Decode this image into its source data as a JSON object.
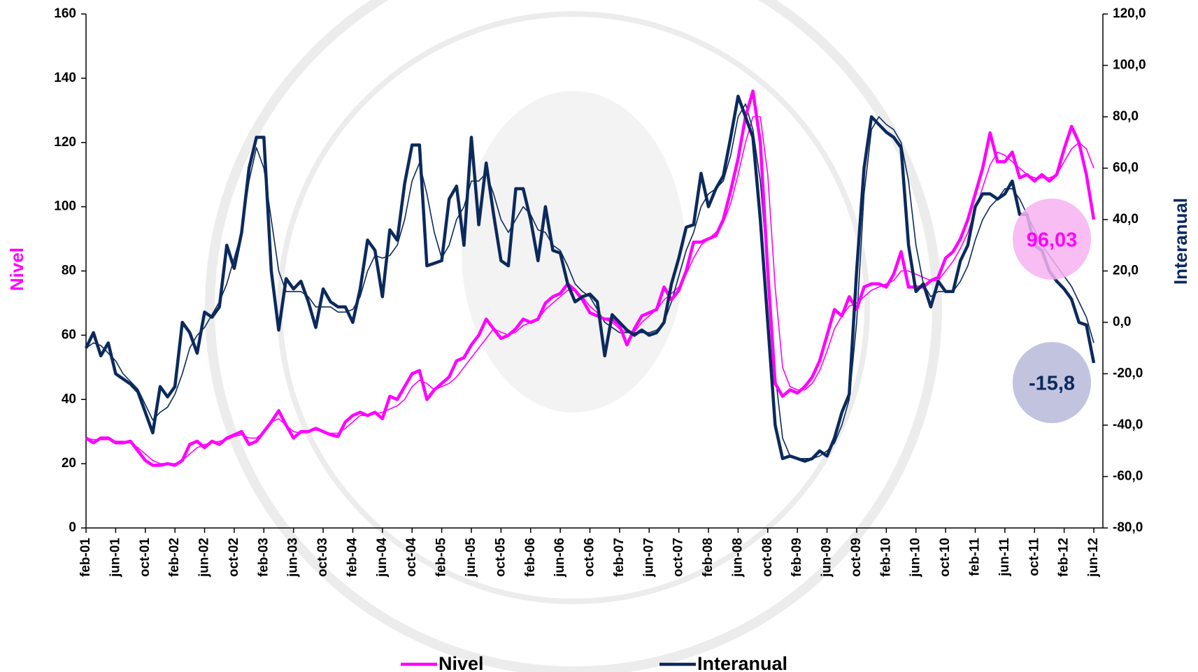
{
  "chart_data": {
    "type": "line",
    "categories": [
      "feb-01",
      null,
      null,
      null,
      "jun-01",
      null,
      null,
      null,
      "oct-01",
      null,
      null,
      null,
      "feb-02",
      null,
      null,
      null,
      "jun-02",
      null,
      null,
      null,
      "oct-02",
      null,
      null,
      null,
      "feb-03",
      null,
      null,
      null,
      "jun-03",
      null,
      null,
      null,
      "oct-03",
      null,
      null,
      null,
      "feb-04",
      null,
      null,
      null,
      "jun-04",
      null,
      null,
      null,
      "oct-04",
      null,
      null,
      null,
      "feb-05",
      null,
      null,
      null,
      "jun-05",
      null,
      null,
      null,
      "oct-05",
      null,
      null,
      null,
      "feb-06",
      null,
      null,
      null,
      "jun-06",
      null,
      null,
      null,
      "oct-06",
      null,
      null,
      null,
      "feb-07",
      null,
      null,
      null,
      "jun-07",
      null,
      null,
      null,
      "oct-07",
      null,
      null,
      null,
      "feb-08",
      null,
      null,
      null,
      "jun-08",
      null,
      null,
      null,
      "oct-08",
      null,
      null,
      null,
      "feb-09",
      null,
      null,
      null,
      "jun-09",
      null,
      null,
      null,
      "oct-09",
      null,
      null,
      null,
      "feb-10",
      null,
      null,
      null,
      "jun-10",
      null,
      null,
      null,
      "oct-10",
      null,
      null,
      null,
      "feb-11",
      null,
      null,
      null,
      "jun-11",
      null,
      null,
      null,
      "oct-11",
      null,
      null,
      null,
      "feb-12",
      null,
      null,
      null,
      "jun-12"
    ],
    "y_label": "Nivel",
    "y2_label": "Interanual",
    "y_label_color": "#ff00ff",
    "y2_label_color": "#0b2a5c",
    "ylim": [
      0,
      160
    ],
    "yticks": [
      0,
      20,
      40,
      60,
      80,
      100,
      120,
      140,
      160
    ],
    "y2lim": [
      -80,
      120
    ],
    "y2ticks": [
      {
        "value": -80,
        "label": "-80,0"
      },
      {
        "value": -60,
        "label": "-60,0"
      },
      {
        "value": -40,
        "label": "-40,0"
      },
      {
        "value": -20,
        "label": "-20,0"
      },
      {
        "value": 0,
        "label": "0,0"
      },
      {
        "value": 20,
        "label": "20,0"
      },
      {
        "value": 40,
        "label": "40,0"
      },
      {
        "value": 60,
        "label": "60,0"
      },
      {
        "value": 80,
        "label": "80,0"
      },
      {
        "value": 100,
        "label": "100,0"
      },
      {
        "value": 120,
        "label": "120,0"
      }
    ],
    "grid": false,
    "legend": "bottom",
    "series": [
      {
        "name": "Nivel",
        "color": "#ff00ff",
        "badge_color": "#f7b3f2",
        "values": [
          28,
          26.5,
          28,
          28,
          26.5,
          26.5,
          27,
          24,
          21,
          19.5,
          19.5,
          20,
          19.5,
          21,
          26,
          27,
          25,
          27,
          26,
          28,
          29,
          30,
          26,
          27,
          30,
          33,
          36.5,
          32,
          28,
          30,
          30,
          31,
          30,
          29,
          28.5,
          33,
          35,
          36,
          35,
          36,
          34,
          41,
          40,
          44,
          48,
          49,
          40,
          43,
          45,
          47,
          52,
          53,
          57,
          60,
          65,
          62,
          59,
          60,
          62,
          65,
          64,
          65,
          70,
          72,
          73,
          76,
          74,
          71,
          67,
          66,
          65,
          65,
          63,
          57,
          62,
          66,
          67,
          68,
          75,
          71,
          74,
          80,
          89,
          89,
          90,
          91,
          96,
          105,
          115,
          128,
          136,
          120,
          80,
          45,
          41,
          43,
          42,
          44,
          47,
          52,
          60,
          68,
          66,
          72,
          68,
          75,
          76,
          76,
          75,
          79,
          86,
          75,
          75,
          75,
          77,
          78,
          84,
          86,
          90,
          96,
          104,
          112,
          123,
          114,
          114,
          117,
          109,
          110,
          108,
          110,
          108,
          110,
          118,
          125,
          120,
          110,
          96.03
        ],
        "value_labels": [
          null,
          null,
          null,
          null,
          null,
          null,
          null,
          null,
          null,
          null,
          null,
          null,
          null,
          null,
          null,
          null,
          null,
          null,
          null,
          null,
          null,
          null,
          null,
          null,
          null,
          null,
          null,
          null,
          null,
          null,
          null,
          null,
          null,
          null,
          null,
          null,
          null,
          null,
          null,
          null,
          null,
          null,
          null,
          null,
          null,
          null,
          null,
          null,
          null,
          null,
          null,
          null,
          null,
          null,
          null,
          null,
          null,
          null,
          null,
          null,
          null,
          null,
          null,
          null,
          null,
          null,
          null,
          null,
          null,
          null,
          null,
          null,
          null,
          null,
          null,
          null,
          null,
          null,
          null,
          null,
          null,
          null,
          null,
          null,
          null,
          null,
          null,
          null,
          null,
          null,
          null,
          null,
          null,
          null,
          null,
          null,
          null,
          null,
          null,
          null,
          null,
          null,
          null,
          null,
          null,
          null,
          null,
          null,
          null,
          null,
          null,
          null,
          null,
          null,
          null,
          null,
          null,
          null,
          null,
          null,
          null,
          null,
          null,
          null,
          null,
          null,
          null,
          null,
          null,
          null,
          null,
          null,
          null,
          null,
          null,
          null,
          "96,03"
        ]
      },
      {
        "name": "Interanual",
        "color": "#0b2a5c",
        "axis": "y2",
        "badge_color": "#b7bad9",
        "values": [
          -10,
          -4,
          -13,
          -8,
          -20,
          -22,
          -24,
          -27,
          -35,
          -43,
          -25,
          -29,
          -25,
          0,
          -4,
          -12,
          4,
          2,
          6,
          30,
          21,
          35,
          60,
          72,
          72,
          20,
          -3,
          17,
          13,
          16,
          8,
          -2,
          13,
          8,
          6,
          6,
          0,
          13,
          32,
          28,
          10,
          36,
          32,
          54,
          69,
          69,
          22,
          23,
          24,
          48,
          53,
          30,
          72,
          38,
          62,
          42,
          24,
          22,
          52,
          52,
          40,
          24,
          45,
          28,
          27,
          15,
          8,
          10,
          11,
          8,
          -13,
          3,
          0,
          -3,
          -5,
          -3,
          -5,
          -4,
          0,
          15,
          25,
          37,
          38,
          58,
          45,
          52,
          57,
          72,
          88,
          80,
          72,
          40,
          0,
          -40,
          -53,
          -52,
          -53,
          -54,
          -53,
          -50,
          -52,
          -45,
          -35,
          -28,
          20,
          60,
          80,
          77,
          74,
          72,
          68,
          30,
          12,
          15,
          6,
          16,
          12,
          12,
          24,
          30,
          45,
          50,
          50,
          48,
          50,
          55,
          42,
          42,
          30,
          28,
          20,
          16,
          13,
          9,
          0,
          -1,
          -15.8
        ],
        "value_labels": [
          null,
          null,
          null,
          null,
          null,
          null,
          null,
          null,
          null,
          null,
          null,
          null,
          null,
          null,
          null,
          null,
          null,
          null,
          null,
          null,
          null,
          null,
          null,
          null,
          null,
          null,
          null,
          null,
          null,
          null,
          null,
          null,
          null,
          null,
          null,
          null,
          null,
          null,
          null,
          null,
          null,
          null,
          null,
          null,
          null,
          null,
          null,
          null,
          null,
          null,
          null,
          null,
          null,
          null,
          null,
          null,
          null,
          null,
          null,
          null,
          null,
          null,
          null,
          null,
          null,
          null,
          null,
          null,
          null,
          null,
          null,
          null,
          null,
          null,
          null,
          null,
          null,
          null,
          null,
          null,
          null,
          null,
          null,
          null,
          null,
          null,
          null,
          null,
          null,
          null,
          null,
          null,
          null,
          null,
          null,
          null,
          null,
          null,
          null,
          null,
          null,
          null,
          null,
          null,
          null,
          null,
          null,
          null,
          null,
          null,
          null,
          null,
          null,
          null,
          null,
          null,
          null,
          null,
          null,
          null,
          null,
          null,
          null,
          null,
          null,
          null,
          null,
          null,
          null,
          null,
          null,
          null,
          null,
          null,
          null,
          null,
          "-15,8"
        ]
      },
      {
        "color": "#ff00ff",
        "values": [
          28,
          27.5,
          27.5,
          27.5,
          27,
          27,
          26.5,
          25,
          23,
          21,
          20,
          20,
          20,
          21,
          23,
          25,
          26,
          26.5,
          27,
          27.5,
          28.5,
          29,
          28,
          28,
          30,
          33,
          34,
          32,
          30,
          29.5,
          30,
          30.5,
          30,
          29.5,
          29.5,
          31,
          33,
          35,
          35,
          35.5,
          36,
          37,
          38,
          40,
          44,
          46,
          45,
          43,
          44,
          45,
          47,
          50,
          53,
          56,
          59,
          62,
          61,
          60,
          61,
          63,
          64,
          65,
          68,
          70,
          72,
          74,
          74,
          72,
          69,
          67,
          65,
          64,
          62,
          61,
          61,
          64,
          66,
          68,
          71,
          73,
          75,
          79,
          84,
          88,
          90,
          92,
          95,
          101,
          110,
          120,
          128,
          128,
          110,
          75,
          50,
          44,
          43,
          43,
          45,
          49,
          55,
          62,
          66,
          69,
          70,
          72,
          74,
          75,
          76,
          77,
          80,
          80,
          79,
          78,
          77,
          77,
          80,
          83,
          87,
          92,
          99,
          106,
          113,
          117,
          116,
          114,
          112,
          110,
          109,
          109,
          109,
          110,
          114,
          118,
          120,
          118,
          112
        ]
      },
      {
        "color": "#0b2a5c",
        "axis": "y2",
        "values": [
          -10,
          -8,
          -9,
          -12,
          -15,
          -20,
          -23,
          -26,
          -32,
          -38,
          -35,
          -33,
          -28,
          -20,
          -10,
          -5,
          -2,
          3,
          8,
          15,
          25,
          35,
          55,
          68,
          60,
          40,
          20,
          12,
          12,
          12,
          10,
          6,
          6,
          6,
          4,
          4,
          5,
          10,
          20,
          26,
          25,
          26,
          30,
          40,
          55,
          62,
          50,
          35,
          25,
          30,
          40,
          45,
          55,
          55,
          58,
          50,
          40,
          35,
          40,
          45,
          42,
          36,
          35,
          30,
          28,
          22,
          15,
          12,
          10,
          5,
          0,
          -2,
          -4,
          -4,
          -4,
          -4,
          -4,
          -3,
          0,
          8,
          18,
          28,
          35,
          45,
          50,
          52,
          55,
          65,
          80,
          85,
          75,
          55,
          20,
          -20,
          -45,
          -52,
          -53,
          -53,
          -53,
          -52,
          -50,
          -47,
          -40,
          -30,
          0,
          50,
          75,
          80,
          77,
          75,
          70,
          55,
          30,
          15,
          10,
          12,
          12,
          12,
          16,
          22,
          32,
          40,
          45,
          48,
          52,
          52,
          48,
          42,
          36,
          30,
          26,
          22,
          18,
          14,
          8,
          2,
          -8
        ]
      }
    ]
  }
}
